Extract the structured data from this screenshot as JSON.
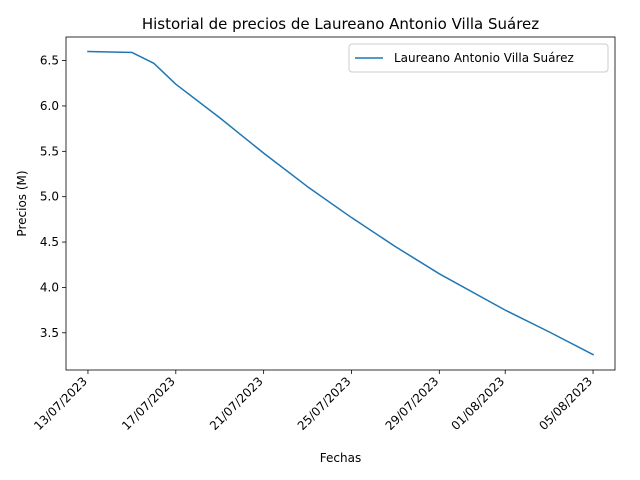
{
  "chart_data": {
    "type": "line",
    "title": "Historial de precios de Laureano Antonio Villa Suárez",
    "xlabel": "Fechas",
    "ylabel": "Precios (M)",
    "x_ticks": [
      "13/07/2023",
      "17/07/2023",
      "21/07/2023",
      "25/07/2023",
      "29/07/2023",
      "01/08/2023",
      "05/08/2023"
    ],
    "y_ticks": [
      3.5,
      4.0,
      4.5,
      5.0,
      5.5,
      6.0,
      6.5
    ],
    "xlim": [
      "2023-07-12",
      "2023-08-06"
    ],
    "ylim": [
      3.09,
      6.76
    ],
    "grid": false,
    "legend_position": "top-right",
    "series": [
      {
        "name": "Laureano Antonio Villa Suárez",
        "color": "#1f77b4",
        "points": [
          [
            "2023-07-13",
            6.6
          ],
          [
            "2023-07-15",
            6.59
          ],
          [
            "2023-07-16",
            6.47
          ],
          [
            "2023-07-17",
            6.24
          ],
          [
            "2023-07-19",
            5.87
          ],
          [
            "2023-07-21",
            5.48
          ],
          [
            "2023-07-23",
            5.11
          ],
          [
            "2023-07-25",
            4.77
          ],
          [
            "2023-07-27",
            4.45
          ],
          [
            "2023-07-29",
            4.15
          ],
          [
            "2023-08-01",
            3.75
          ],
          [
            "2023-08-03",
            3.51
          ],
          [
            "2023-08-05",
            3.26
          ]
        ]
      }
    ]
  }
}
